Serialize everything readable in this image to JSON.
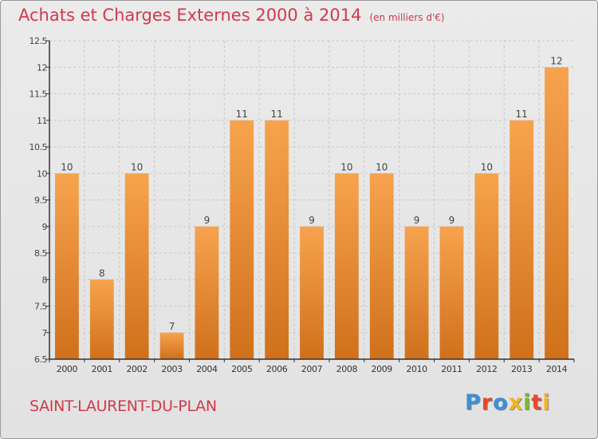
{
  "header": {
    "title": "Achats et Charges Externes 2000 à 2014",
    "unit": "(en milliers d'€)"
  },
  "footer": {
    "town": "SAINT-LAURENT-DU-PLAN",
    "logo": "Proxiti",
    "logo_colors": [
      "#3c8fd8",
      "#e8482d",
      "#3c8fd8",
      "#f2b51e",
      "#7cb82f",
      "#e8482d",
      "#f2b51e"
    ]
  },
  "colors": {
    "bar_top": "#f7a34e",
    "bar_bottom": "#d0701b",
    "axis": "#333333",
    "grid": "#c8c8c8",
    "title": "#d3394a"
  },
  "chart_data": {
    "type": "bar",
    "categories": [
      "2000",
      "2001",
      "2002",
      "2003",
      "2004",
      "2005",
      "2006",
      "2007",
      "2008",
      "2009",
      "2010",
      "2011",
      "2012",
      "2013",
      "2014"
    ],
    "values": [
      10,
      8,
      10,
      7,
      9,
      11,
      11,
      9,
      10,
      10,
      9,
      9,
      10,
      11,
      12
    ],
    "data_labels": [
      "10",
      "8",
      "10",
      "7",
      "9",
      "11",
      "11",
      "9",
      "10",
      "10",
      "9",
      "9",
      "10",
      "11",
      "12"
    ],
    "ylim": [
      6.5,
      12.5
    ],
    "yticks": [
      6.5,
      7,
      7.5,
      8,
      8.5,
      9,
      9.5,
      10,
      10.5,
      11,
      11.5,
      12,
      12.5
    ],
    "ytick_labels": [
      "6.5",
      "7",
      "7.5",
      "8",
      "8.5",
      "9",
      "9.5",
      "10",
      "10.5",
      "11",
      "11.5",
      "12",
      "12.5"
    ],
    "grid": true,
    "legend": "none"
  }
}
